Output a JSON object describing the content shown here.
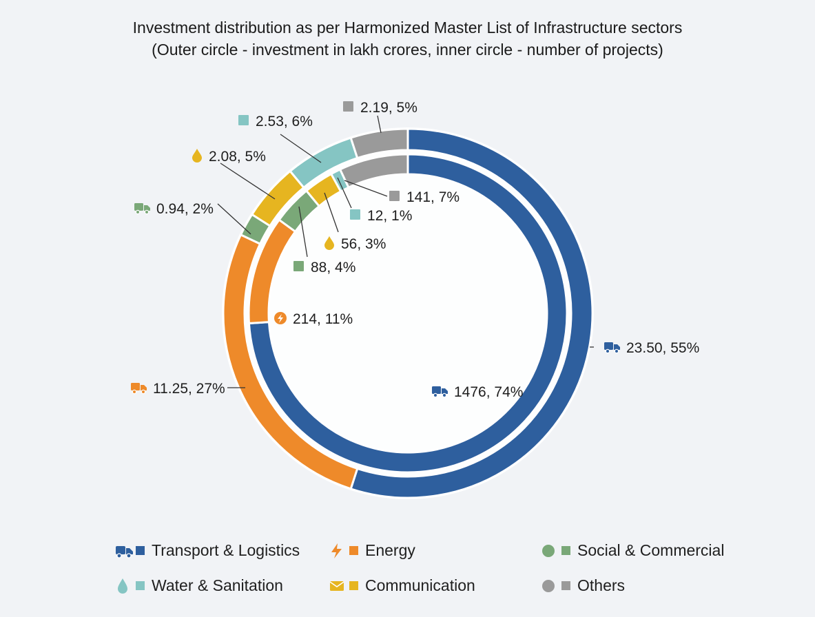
{
  "title_line1": "Investment distribution as per Harmonized Master List of Infrastructure sectors",
  "title_line2": "(Outer circle - investment in lakh crores, inner circle - number of projects)",
  "chart_data": {
    "type": "donut",
    "title": "Investment distribution as per Harmonized Master List of Infrastructure sectors",
    "subtitle": "(Outer circle - investment in lakh crores, inner circle - number of projects)",
    "rings": [
      {
        "ring": "outer",
        "unit": "lakh crores",
        "slices": [
          {
            "category": "Transport & Logistics",
            "value": 23.5,
            "percent": 55,
            "label": "23.50, 55%",
            "color": "#2e5f9e",
            "icon": "truck-icon"
          },
          {
            "category": "Energy",
            "value": 11.25,
            "percent": 27,
            "label": "11.25, 27%",
            "color": "#ee8a2a",
            "icon": "truck-icon"
          },
          {
            "category": "Social & Commercial",
            "value": 0.94,
            "percent": 2,
            "label": "0.94, 2%",
            "color": "#7aa878",
            "icon": "truck-icon"
          },
          {
            "category": "Communication",
            "value": 2.08,
            "percent": 5,
            "label": "2.08, 5%",
            "color": "#e6b520",
            "icon": "drop-icon"
          },
          {
            "category": "Water & Sanitation",
            "value": 2.53,
            "percent": 6,
            "label": "2.53, 6%",
            "color": "#85c5c3",
            "icon": "square-icon"
          },
          {
            "category": "Others",
            "value": 2.19,
            "percent": 5,
            "label": "2.19, 5%",
            "color": "#9a9a9a",
            "icon": "square-icon"
          }
        ]
      },
      {
        "ring": "inner",
        "unit": "number of projects",
        "slices": [
          {
            "category": "Transport & Logistics",
            "value": 1476,
            "percent": 74,
            "label": "1476, 74%",
            "color": "#2e5f9e",
            "icon": "truck-icon"
          },
          {
            "category": "Energy",
            "value": 214,
            "percent": 11,
            "label": "214, 11%",
            "color": "#ee8a2a",
            "icon": "lightning-icon"
          },
          {
            "category": "Social & Commercial",
            "value": 88,
            "percent": 4,
            "label": "88, 4%",
            "color": "#7aa878",
            "icon": "square-icon"
          },
          {
            "category": "Communication",
            "value": 56,
            "percent": 3,
            "label": "56, 3%",
            "color": "#e6b520",
            "icon": "drop-icon"
          },
          {
            "category": "Water & Sanitation",
            "value": 12,
            "percent": 1,
            "label": "12, 1%",
            "color": "#85c5c3",
            "icon": "square-icon"
          },
          {
            "category": "Others",
            "value": 141,
            "percent": 7,
            "label": "141, 7%",
            "color": "#9a9a9a",
            "icon": "square-icon"
          }
        ]
      }
    ]
  },
  "legend": [
    {
      "label": "Transport & Logistics",
      "color": "#2e5f9e",
      "icon": "truck-icon"
    },
    {
      "label": "Energy",
      "color": "#ee8a2a",
      "icon": "lightning-icon"
    },
    {
      "label": "Social & Commercial",
      "color": "#7aa878",
      "icon": "circle-icon"
    },
    {
      "label": "Water & Sanitation",
      "color": "#85c5c3",
      "icon": "drop-icon"
    },
    {
      "label": "Communication",
      "color": "#e6b520",
      "icon": "envelope-icon"
    },
    {
      "label": "Others",
      "color": "#9a9a9a",
      "icon": "circle-icon"
    }
  ]
}
